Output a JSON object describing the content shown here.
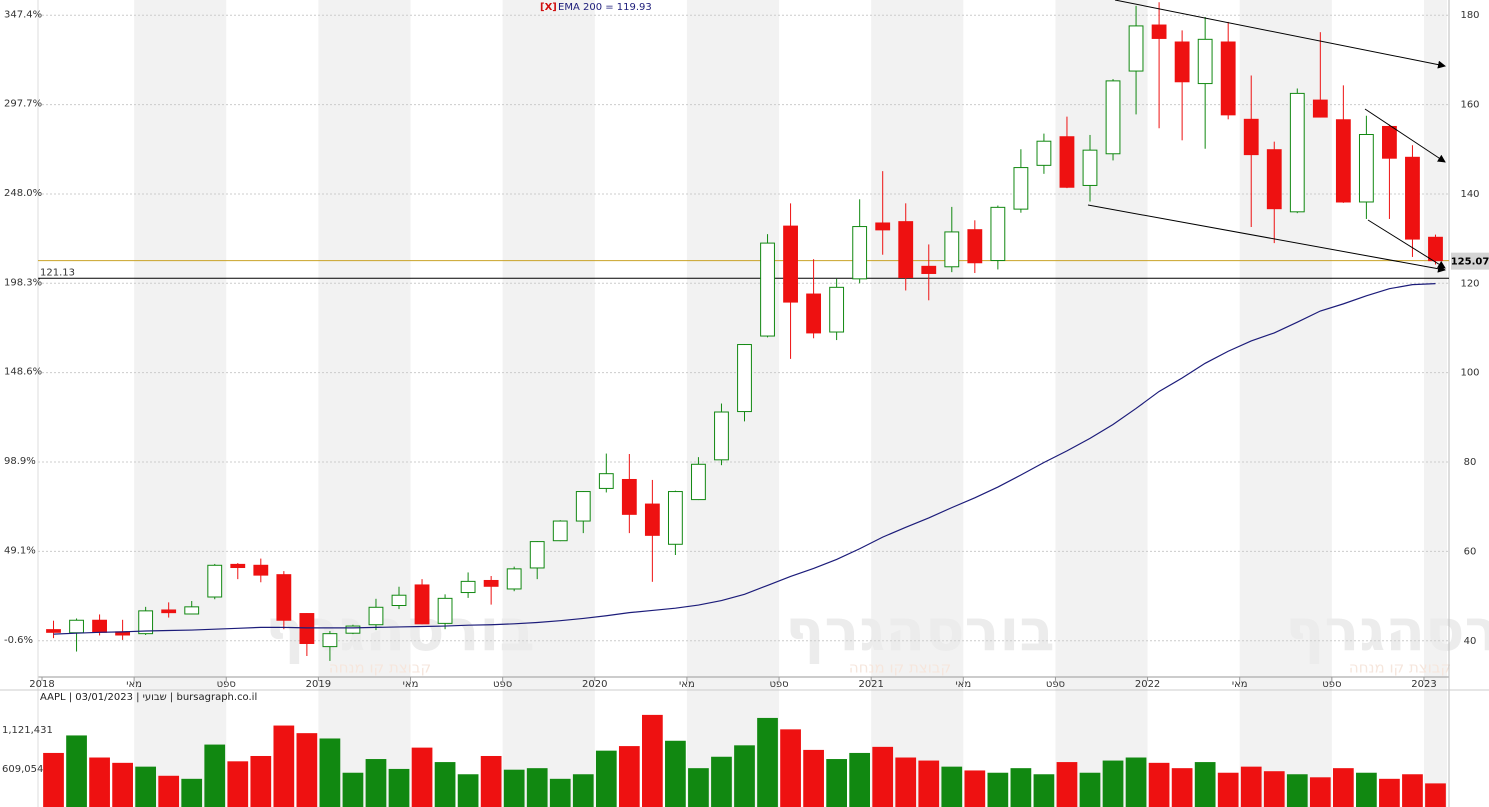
{
  "chart_data": {
    "type": "candlestick",
    "title_close": "[X]",
    "ema": {
      "label": "EMA 200 = 119.93",
      "color": "#1c1c7a",
      "values": [
        41.5,
        41.7,
        41.9,
        42.0,
        42.2,
        42.3,
        42.4,
        42.6,
        42.8,
        43.0,
        43.0,
        42.9,
        42.9,
        42.9,
        43.0,
        43.1,
        43.2,
        43.3,
        43.5,
        43.6,
        43.8,
        44.1,
        44.5,
        45.0,
        45.6,
        46.3,
        46.8,
        47.3,
        48.0,
        49.0,
        50.4,
        52.4,
        54.4,
        56.2,
        58.2,
        60.6,
        63.2,
        65.4,
        67.5,
        69.8,
        72.0,
        74.4,
        77.1,
        79.9,
        82.5,
        85.3,
        88.4,
        92.0,
        95.8,
        98.8,
        102.1,
        104.8,
        107.1,
        108.9,
        111.3,
        113.8,
        115.4,
        117.2,
        118.8,
        119.7,
        119.93
      ]
    },
    "info": "AAPL | 03/01/2023 | שבועי | bursagraph.co.il",
    "watermark": "בורסהגרף",
    "watermark_sub": "קבוצת קו מנחה",
    "x": [
      "2018-01",
      "2018-02",
      "2018-03",
      "2018-04",
      "2018-05",
      "2018-06",
      "2018-07",
      "2018-08",
      "2018-09",
      "2018-10",
      "2018-11",
      "2018-12",
      "2019-01",
      "2019-02",
      "2019-03",
      "2019-04",
      "2019-05",
      "2019-06",
      "2019-07",
      "2019-08",
      "2019-09",
      "2019-10",
      "2019-11",
      "2019-12",
      "2020-01",
      "2020-02",
      "2020-03",
      "2020-04",
      "2020-05",
      "2020-06",
      "2020-07",
      "2020-08",
      "2020-09",
      "2020-10",
      "2020-11",
      "2020-12",
      "2021-01",
      "2021-02",
      "2021-03",
      "2021-04",
      "2021-05",
      "2021-06",
      "2021-07",
      "2021-08",
      "2021-09",
      "2021-10",
      "2021-11",
      "2021-12",
      "2022-01",
      "2022-02",
      "2022-03",
      "2022-04",
      "2022-05",
      "2022-06",
      "2022-07",
      "2022-08",
      "2022-09",
      "2022-10",
      "2022-11",
      "2022-12",
      "2023-01"
    ],
    "open": [
      42.5,
      41.8,
      44.6,
      42.0,
      41.6,
      46.9,
      46.0,
      49.8,
      57.1,
      56.9,
      54.8,
      46.1,
      38.7,
      41.7,
      43.6,
      47.9,
      52.5,
      43.9,
      50.8,
      53.5,
      51.6,
      56.3,
      62.4,
      66.8,
      74.1,
      76.1,
      70.6,
      61.6,
      71.6,
      80.5,
      91.3,
      108.2,
      132.8,
      117.6,
      109.1,
      121.0,
      133.5,
      133.8,
      123.8,
      123.7,
      132.0,
      125.1,
      136.6,
      146.4,
      152.8,
      141.9,
      148.99,
      167.5,
      177.8,
      174.0,
      164.7,
      174.0,
      156.7,
      149.9,
      136.0,
      161.0,
      156.6,
      138.2,
      155.1,
      148.2,
      130.3
    ],
    "high": [
      44.5,
      45.0,
      45.9,
      44.7,
      47.6,
      48.6,
      48.9,
      57.2,
      57.4,
      58.4,
      55.6,
      46.2,
      42.2,
      43.6,
      49.4,
      52.1,
      53.8,
      50.4,
      55.3,
      54.5,
      56.6,
      62.3,
      67.0,
      73.5,
      81.9,
      81.8,
      76.0,
      73.6,
      81.1,
      93.1,
      106.4,
      131.0,
      137.9,
      125.4,
      121.0,
      138.8,
      145.1,
      137.9,
      128.7,
      137.1,
      134.1,
      137.4,
      150.0,
      153.5,
      157.3,
      153.2,
      165.7,
      182.1,
      182.9,
      176.6,
      179.6,
      178.5,
      166.5,
      151.7,
      163.6,
      176.2,
      164.3,
      157.5,
      155.5,
      150.9,
      130.9
    ],
    "low": [
      40.6,
      37.6,
      41.2,
      40.2,
      41.3,
      45.2,
      45.9,
      49.3,
      53.8,
      53.1,
      42.6,
      36.6,
      35.5,
      41.5,
      42.4,
      47.1,
      43.7,
      42.6,
      49.6,
      48.1,
      51.1,
      53.8,
      62.3,
      64.1,
      73.2,
      64.1,
      53.2,
      59.2,
      71.5,
      79.3,
      89.1,
      107.9,
      103.1,
      107.7,
      107.3,
      120.0,
      126.4,
      118.4,
      116.2,
      122.5,
      122.3,
      123.1,
      135.8,
      144.5,
      141.3,
      138.3,
      147.5,
      157.8,
      154.7,
      152.0,
      150.1,
      156.7,
      132.6,
      129.0,
      135.7,
      157.1,
      138.0,
      134.4,
      134.4,
      125.9,
      124.2
    ],
    "close": [
      41.9,
      44.6,
      41.9,
      41.3,
      46.7,
      46.3,
      47.6,
      56.9,
      56.4,
      54.7,
      44.6,
      39.4,
      41.6,
      43.3,
      47.5,
      50.2,
      43.8,
      49.5,
      53.3,
      52.2,
      56.1,
      62.2,
      66.8,
      73.4,
      77.4,
      68.3,
      63.6,
      73.4,
      79.5,
      91.2,
      106.3,
      129.0,
      115.8,
      108.9,
      119.1,
      132.7,
      131.96,
      121.3,
      122.2,
      131.5,
      124.6,
      137.0,
      145.9,
      151.8,
      141.5,
      149.8,
      165.3,
      177.6,
      174.8,
      165.1,
      174.6,
      157.7,
      148.8,
      136.7,
      162.5,
      157.2,
      138.2,
      153.3,
      148.0,
      129.9,
      125.07
    ],
    "volume": [
      820000,
      1050000,
      760000,
      690000,
      640000,
      520000,
      480000,
      930000,
      710000,
      780000,
      1180000,
      1080000,
      1010000,
      560000,
      740000,
      610000,
      890000,
      700000,
      540000,
      780000,
      600000,
      620000,
      480000,
      540000,
      850000,
      910000,
      1320000,
      980000,
      620000,
      770000,
      920000,
      1280000,
      1130000,
      860000,
      740000,
      820000,
      900000,
      760000,
      720000,
      640000,
      590000,
      560000,
      620000,
      540000,
      700000,
      560000,
      720000,
      760000,
      690000,
      620000,
      700000,
      560000,
      640000,
      580000,
      540000,
      500000,
      620000,
      560000,
      480000,
      540000,
      420000
    ],
    "up_color": "#118811",
    "down_color": "#ee1111",
    "ylim": [
      31.9,
      183.4
    ],
    "yticks": [
      40,
      60,
      80,
      100,
      120,
      140,
      160,
      180
    ],
    "y2lim": [
      -20.7,
      355.9
    ],
    "y2ticks": [
      {
        "value": 347.4,
        "label": "347.4%"
      },
      {
        "value": 297.7,
        "label": "297.7%"
      },
      {
        "value": 248.0,
        "label": "248.0%"
      },
      {
        "value": 198.3,
        "label": "198.3%"
      },
      {
        "value": 148.6,
        "label": "148.6%"
      },
      {
        "value": 98.9,
        "label": "98.9%"
      },
      {
        "value": 49.1,
        "label": "49.1%"
      },
      {
        "value": -0.6,
        "label": "-0.6%"
      }
    ],
    "xlim": [
      "2018-01",
      "2023-02"
    ],
    "xticks": [
      {
        "value": "2018-01",
        "label": "2018"
      },
      {
        "value": "2018-05",
        "label": "מאי"
      },
      {
        "value": "2018-09",
        "label": "ספט"
      },
      {
        "value": "2019-01",
        "label": "2019"
      },
      {
        "value": "2019-05",
        "label": "מאי"
      },
      {
        "value": "2019-09",
        "label": "ספט"
      },
      {
        "value": "2020-01",
        "label": "2020"
      },
      {
        "value": "2020-05",
        "label": "מאי"
      },
      {
        "value": "2020-09",
        "label": "ספט"
      },
      {
        "value": "2021-01",
        "label": "2021"
      },
      {
        "value": "2021-05",
        "label": "מאי"
      },
      {
        "value": "2021-09",
        "label": "ספט"
      },
      {
        "value": "2022-01",
        "label": "2022"
      },
      {
        "value": "2022-05",
        "label": "מאי"
      },
      {
        "value": "2022-09",
        "label": "ספט"
      },
      {
        "value": "2023-01",
        "label": "2023"
      }
    ],
    "volume_ylim": [
      109800,
      1449900
    ],
    "volume_ticks": [
      {
        "value": 609054,
        "label": "609,054"
      },
      {
        "value": 1121431,
        "label": "1,121,431"
      }
    ],
    "hline": 121.13,
    "last_price": 125.07,
    "last_price_color": "#c9a227"
  }
}
